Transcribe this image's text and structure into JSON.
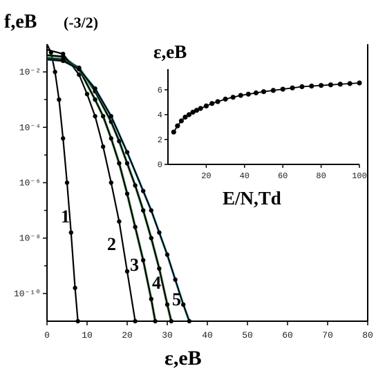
{
  "chart_data": [
    {
      "type": "line",
      "title": "",
      "ylabel": "f,eB",
      "ylabel_suffix": "(-3/2)",
      "xlabel": "ε,eB",
      "xlim": [
        0,
        80
      ],
      "ylim_log10": [
        -11,
        -1
      ],
      "xticks": [
        "0",
        "10",
        "20",
        "30",
        "40",
        "50",
        "60",
        "70",
        "80"
      ],
      "yticks": [
        "10⁻²",
        "10⁻⁴",
        "10⁻⁶",
        "10⁻⁸",
        "10⁻¹⁰"
      ],
      "yticks_log10": [
        -2,
        -4,
        -6,
        -8,
        -10
      ],
      "series": [
        {
          "name": "1",
          "x": [
            0,
            1,
            2,
            3,
            4,
            5,
            6,
            7,
            7.7
          ],
          "log10y": [
            -1.0,
            -1.3,
            -2.0,
            -3.0,
            -4.4,
            -6.0,
            -7.8,
            -9.8,
            -11
          ]
        },
        {
          "name": "2",
          "x": [
            0,
            4,
            8,
            10,
            12,
            14,
            16,
            18,
            20,
            22
          ],
          "log10y": [
            -1.2,
            -1.35,
            -2.1,
            -2.8,
            -3.6,
            -4.7,
            -6.0,
            -7.4,
            -9.2,
            -11
          ]
        },
        {
          "name": "3",
          "x": [
            0,
            4,
            8,
            12,
            14,
            16,
            18,
            20,
            22,
            24,
            26,
            27
          ],
          "log10y": [
            -1.4,
            -1.45,
            -1.9,
            -3.0,
            -3.6,
            -4.4,
            -5.3,
            -6.4,
            -7.6,
            -8.8,
            -10.2,
            -11
          ]
        },
        {
          "name": "4",
          "x": [
            0,
            4,
            8,
            12,
            16,
            18,
            20,
            22,
            24,
            26,
            28,
            30,
            31
          ],
          "log10y": [
            -1.5,
            -1.55,
            -1.85,
            -2.7,
            -3.8,
            -4.5,
            -5.3,
            -6.1,
            -7.0,
            -8.0,
            -9.1,
            -10.4,
            -11
          ]
        },
        {
          "name": "5",
          "x": [
            0,
            4,
            8,
            12,
            16,
            20,
            24,
            26,
            28,
            30,
            32,
            34,
            35.5
          ],
          "log10y": [
            -1.55,
            -1.6,
            -1.9,
            -2.6,
            -3.6,
            -4.9,
            -6.3,
            -7.0,
            -7.8,
            -8.6,
            -9.5,
            -10.4,
            -11
          ]
        }
      ],
      "curve_labels": [
        "1",
        "2",
        "3",
        "4",
        "5"
      ]
    },
    {
      "type": "line",
      "title": "",
      "ylabel": "ε,eB",
      "xlabel": "E/N,Td",
      "xlim": [
        0,
        100
      ],
      "ylim": [
        0,
        7
      ],
      "xticks": [
        "20",
        "40",
        "60",
        "80",
        "100"
      ],
      "yticks": [
        "0",
        "2",
        "4",
        "6"
      ],
      "series": [
        {
          "x": [
            3,
            5,
            7,
            9,
            11,
            13,
            15,
            17,
            20,
            23,
            26,
            30,
            34,
            38,
            42,
            46,
            50,
            55,
            60,
            65,
            70,
            75,
            80,
            85,
            90,
            95,
            100
          ],
          "y": [
            2.6,
            3.1,
            3.5,
            3.8,
            4.0,
            4.2,
            4.35,
            4.5,
            4.7,
            4.9,
            5.05,
            5.25,
            5.4,
            5.55,
            5.65,
            5.75,
            5.85,
            5.95,
            6.05,
            6.15,
            6.25,
            6.3,
            6.35,
            6.4,
            6.45,
            6.5,
            6.55
          ]
        }
      ]
    }
  ]
}
